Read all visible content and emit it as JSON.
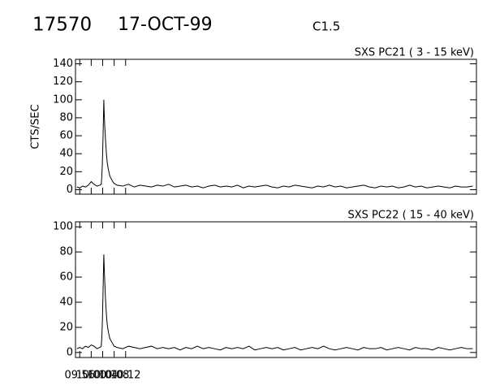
{
  "header": {
    "id": "17570",
    "date": "17-OCT-99",
    "class": "C1.5"
  },
  "chart_data": [
    {
      "type": "line",
      "title": "SXS PC21  (  3 - 15 keV)",
      "ylabel": "CTS/SEC",
      "xlim": [
        594.52,
        734.28
      ],
      "xticks": [
        596,
        600,
        604,
        608,
        612
      ],
      "ylim": [
        -5,
        145
      ],
      "yticks": [
        0,
        20,
        40,
        60,
        80,
        100,
        120,
        140
      ],
      "x": [
        595,
        596,
        597,
        598,
        599,
        600,
        601,
        602,
        603,
        603.5,
        603.7,
        603.9,
        604.1,
        604.3,
        604.4,
        604.5,
        604.7,
        605,
        605.3,
        605.6,
        606,
        606.5,
        607,
        607.5,
        608,
        609,
        611,
        613,
        615,
        617,
        619,
        621,
        623,
        625,
        627,
        629,
        631,
        633,
        635,
        637,
        639,
        641,
        643,
        645,
        647,
        649,
        651,
        653,
        655,
        657,
        659,
        661,
        663,
        665,
        667,
        669,
        671,
        673,
        675,
        677,
        679,
        681,
        683,
        685,
        687,
        689,
        691,
        693,
        695,
        697,
        699,
        701,
        703,
        705,
        707,
        709,
        711,
        713,
        715,
        717,
        719,
        721,
        723,
        725,
        727,
        729,
        731,
        733
      ],
      "series": [
        {
          "name": "PC21",
          "color": "#000000",
          "values": [
            3,
            2,
            4,
            3,
            5,
            9,
            6,
            4,
            5,
            6,
            15,
            30,
            55,
            85,
            100,
            88,
            72,
            55,
            40,
            30,
            22,
            15,
            12,
            9,
            7,
            5,
            4,
            6,
            3,
            5,
            4,
            3,
            5,
            4,
            6,
            3,
            4,
            5,
            3,
            4,
            2,
            4,
            5,
            3,
            4,
            3,
            5,
            2,
            4,
            3,
            4,
            5,
            3,
            2,
            4,
            3,
            5,
            4,
            3,
            2,
            4,
            3,
            5,
            3,
            4,
            2,
            3,
            4,
            5,
            3,
            2,
            4,
            3,
            4,
            2,
            3,
            5,
            3,
            4,
            2,
            3,
            4,
            3,
            2,
            4,
            3,
            3,
            4
          ]
        }
      ]
    },
    {
      "type": "line",
      "title": "SXS PC22  ( 15 - 40 keV)",
      "xlim": [
        594.52,
        734.28
      ],
      "xticks": [
        {
          "value": 596,
          "label": "09:56"
        },
        {
          "value": 600,
          "label": "10:00"
        },
        {
          "value": 604,
          "label": "10:04"
        },
        {
          "value": 608,
          "label": "10:08"
        },
        {
          "value": 612,
          "label": "10:12"
        }
      ],
      "ylim": [
        -4,
        104
      ],
      "yticks": [
        0,
        20,
        40,
        60,
        80,
        100
      ],
      "x": [
        595,
        596,
        597,
        598,
        599,
        600,
        601,
        602,
        603,
        603.5,
        603.7,
        603.9,
        604.1,
        604.3,
        604.4,
        604.5,
        604.7,
        605,
        605.3,
        605.6,
        606,
        606.5,
        607,
        607.5,
        608,
        609,
        611,
        613,
        615,
        617,
        619,
        621,
        623,
        625,
        627,
        629,
        631,
        633,
        635,
        637,
        639,
        641,
        643,
        645,
        647,
        649,
        651,
        653,
        655,
        657,
        659,
        661,
        663,
        665,
        667,
        669,
        671,
        673,
        675,
        677,
        679,
        681,
        683,
        685,
        687,
        689,
        691,
        693,
        695,
        697,
        699,
        701,
        703,
        705,
        707,
        709,
        711,
        713,
        715,
        717,
        719,
        721,
        723,
        725,
        727,
        729,
        731,
        733
      ],
      "series": [
        {
          "name": "PC22",
          "color": "#000000",
          "values": [
            3,
            4,
            3,
            5,
            4,
            6,
            5,
            3,
            4,
            5,
            12,
            25,
            45,
            68,
            78,
            70,
            58,
            42,
            30,
            22,
            16,
            11,
            9,
            7,
            5,
            4,
            3,
            5,
            4,
            3,
            4,
            5,
            3,
            4,
            3,
            4,
            2,
            4,
            3,
            5,
            3,
            4,
            3,
            2,
            4,
            3,
            4,
            3,
            5,
            2,
            3,
            4,
            3,
            4,
            2,
            3,
            4,
            2,
            3,
            4,
            3,
            5,
            3,
            2,
            3,
            4,
            3,
            2,
            4,
            3,
            3,
            4,
            2,
            3,
            4,
            3,
            2,
            4,
            3,
            3,
            2,
            4,
            3,
            2,
            3,
            4,
            3,
            3
          ]
        }
      ]
    }
  ]
}
